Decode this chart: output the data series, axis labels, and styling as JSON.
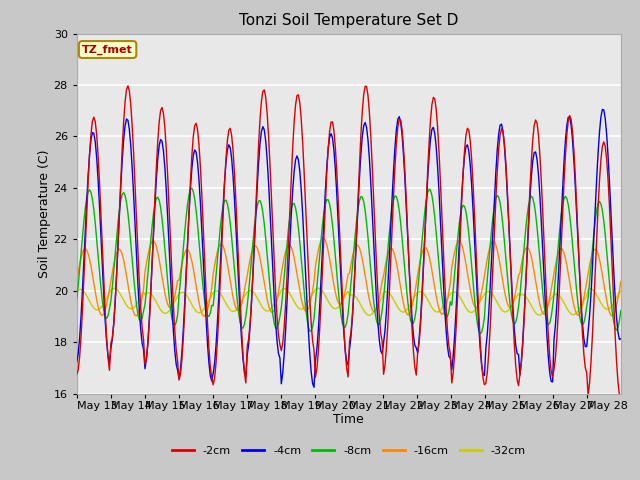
{
  "title": "Tonzi Soil Temperature Set D",
  "xlabel": "Time",
  "ylabel": "Soil Temperature (C)",
  "ylim": [
    16,
    30
  ],
  "x_tick_labels": [
    "May 13",
    "May 14",
    "May 15",
    "May 16",
    "May 17",
    "May 18",
    "May 19",
    "May 20",
    "May 21",
    "May 22",
    "May 23",
    "May 24",
    "May 25",
    "May 26",
    "May 27",
    "May 28"
  ],
  "legend_labels": [
    "-2cm",
    "-4cm",
    "-8cm",
    "-16cm",
    "-32cm"
  ],
  "line_colors": [
    "#dd0000",
    "#0000ee",
    "#00bb00",
    "#ff8800",
    "#cccc00"
  ],
  "annotation_text": "TZ_fmet",
  "annotation_bg": "#ffffcc",
  "annotation_border": "#aa8800",
  "annotation_text_color": "#aa0000",
  "fig_bg": "#c8c8c8",
  "plot_bg": "#e8e8e8",
  "yticks": [
    16,
    18,
    20,
    22,
    24,
    26,
    28,
    30
  ]
}
